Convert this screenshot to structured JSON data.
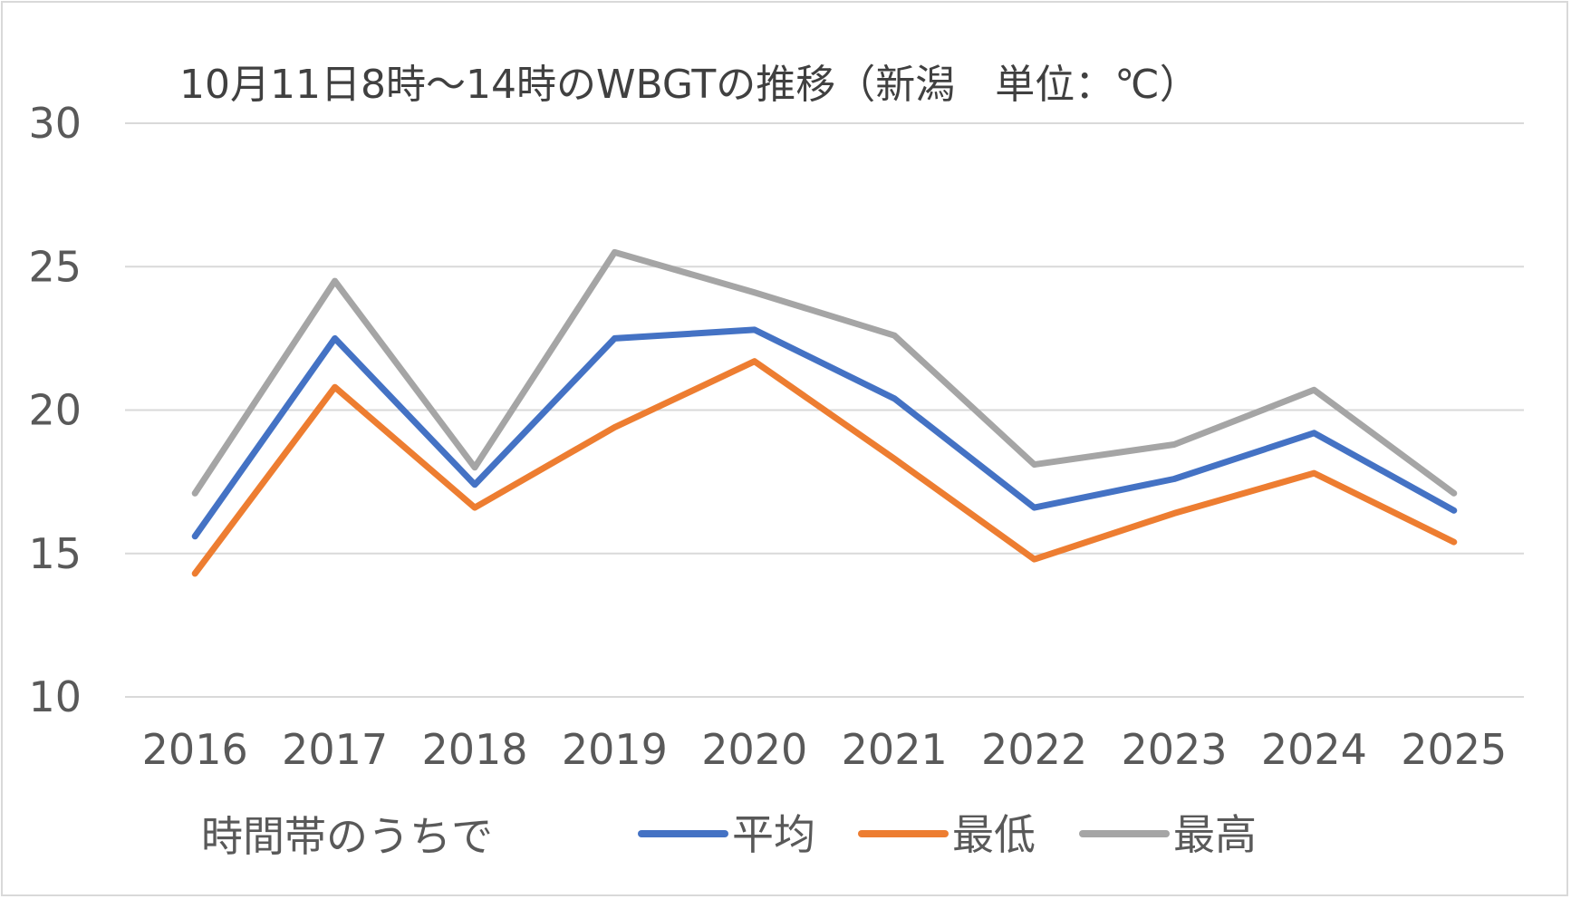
{
  "chart_data": {
    "type": "line",
    "title": "10月11日8時～14時のWBGTの推移（新潟　単位：℃）",
    "categories": [
      "2016",
      "2017",
      "2018",
      "2019",
      "2020",
      "2021",
      "2022",
      "2023",
      "2024",
      "2025"
    ],
    "ylim": [
      10,
      30
    ],
    "yticks": [
      10,
      15,
      20,
      25,
      30
    ],
    "grid": true,
    "legend_position": "bottom",
    "legend_note": "時間帯のうちで",
    "series": [
      {
        "name": "平均",
        "color": "#4472c4",
        "values": [
          15.6,
          22.5,
          17.4,
          22.5,
          22.8,
          20.4,
          16.6,
          17.6,
          19.2,
          16.5
        ]
      },
      {
        "name": "最低",
        "color": "#ed7d31",
        "values": [
          14.3,
          20.8,
          16.6,
          19.4,
          21.7,
          18.3,
          14.8,
          16.4,
          17.8,
          15.4
        ]
      },
      {
        "name": "最高",
        "color": "#a5a5a5",
        "values": [
          17.1,
          24.5,
          18.0,
          25.5,
          24.1,
          22.6,
          18.1,
          18.8,
          20.7,
          17.1
        ]
      }
    ]
  }
}
